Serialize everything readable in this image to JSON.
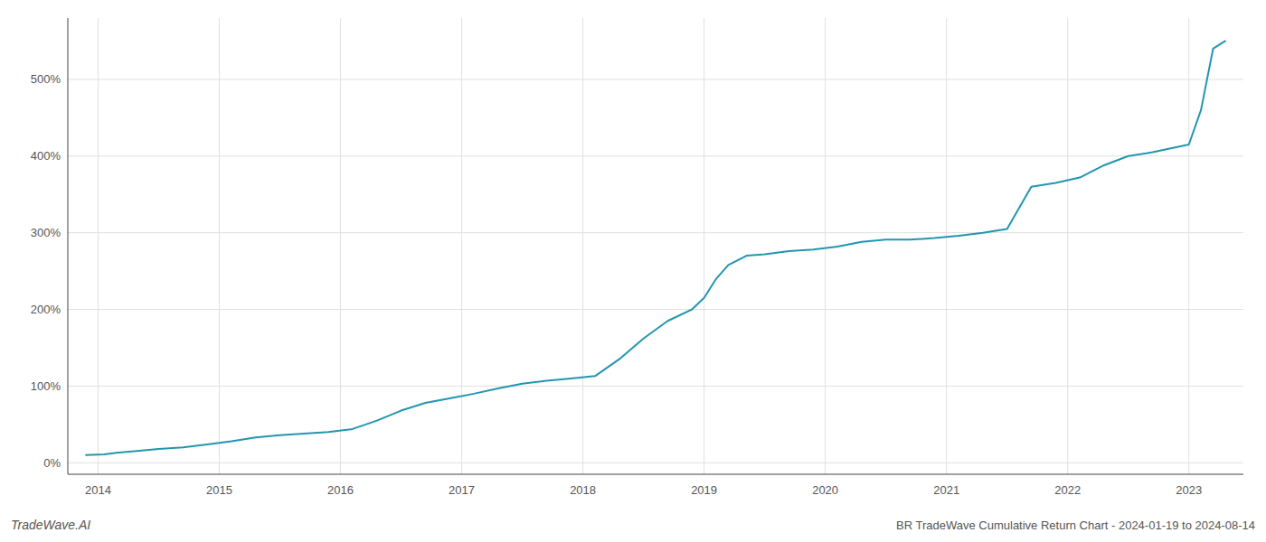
{
  "chart_data": {
    "type": "line",
    "title": "BR TradeWave Cumulative Return Chart - 2024-01-19 to 2024-08-14",
    "annotations": [
      "TradeWave.AI"
    ],
    "color": "#2196b0",
    "grid": true,
    "xlim": [
      2013.75,
      2023.45
    ],
    "ylim": [
      -15,
      580
    ],
    "xticks": [
      2014,
      2015,
      2016,
      2017,
      2018,
      2019,
      2020,
      2021,
      2022,
      2023
    ],
    "yticks": [
      {
        "value": 0,
        "label": "0%"
      },
      {
        "value": 100,
        "label": "100%"
      },
      {
        "value": 200,
        "label": "200%"
      },
      {
        "value": 300,
        "label": "300%"
      },
      {
        "value": 400,
        "label": "400%"
      },
      {
        "value": 500,
        "label": "500%"
      }
    ],
    "x": [
      2013.9,
      2014.05,
      2014.15,
      2014.3,
      2014.5,
      2014.7,
      2014.9,
      2015.1,
      2015.3,
      2015.5,
      2015.7,
      2015.9,
      2016.1,
      2016.3,
      2016.5,
      2016.7,
      2016.9,
      2017.1,
      2017.3,
      2017.5,
      2017.7,
      2017.9,
      2018.1,
      2018.3,
      2018.5,
      2018.7,
      2018.9,
      2019.0,
      2019.1,
      2019.2,
      2019.35,
      2019.5,
      2019.7,
      2019.9,
      2020.1,
      2020.3,
      2020.5,
      2020.7,
      2020.9,
      2021.1,
      2021.3,
      2021.5,
      2021.7,
      2021.9,
      2022.1,
      2022.3,
      2022.5,
      2022.7,
      2022.85,
      2023.0,
      2023.1,
      2023.2,
      2023.3
    ],
    "values": [
      10,
      11,
      13,
      15,
      18,
      20,
      24,
      28,
      33,
      36,
      38,
      40,
      44,
      55,
      68,
      78,
      84,
      90,
      97,
      103,
      107,
      110,
      113,
      135,
      162,
      185,
      200,
      215,
      240,
      258,
      270,
      272,
      276,
      278,
      282,
      288,
      291,
      291,
      293,
      296,
      300,
      305,
      360,
      365,
      372,
      388,
      400,
      405,
      410,
      415,
      460,
      540,
      550
    ]
  }
}
